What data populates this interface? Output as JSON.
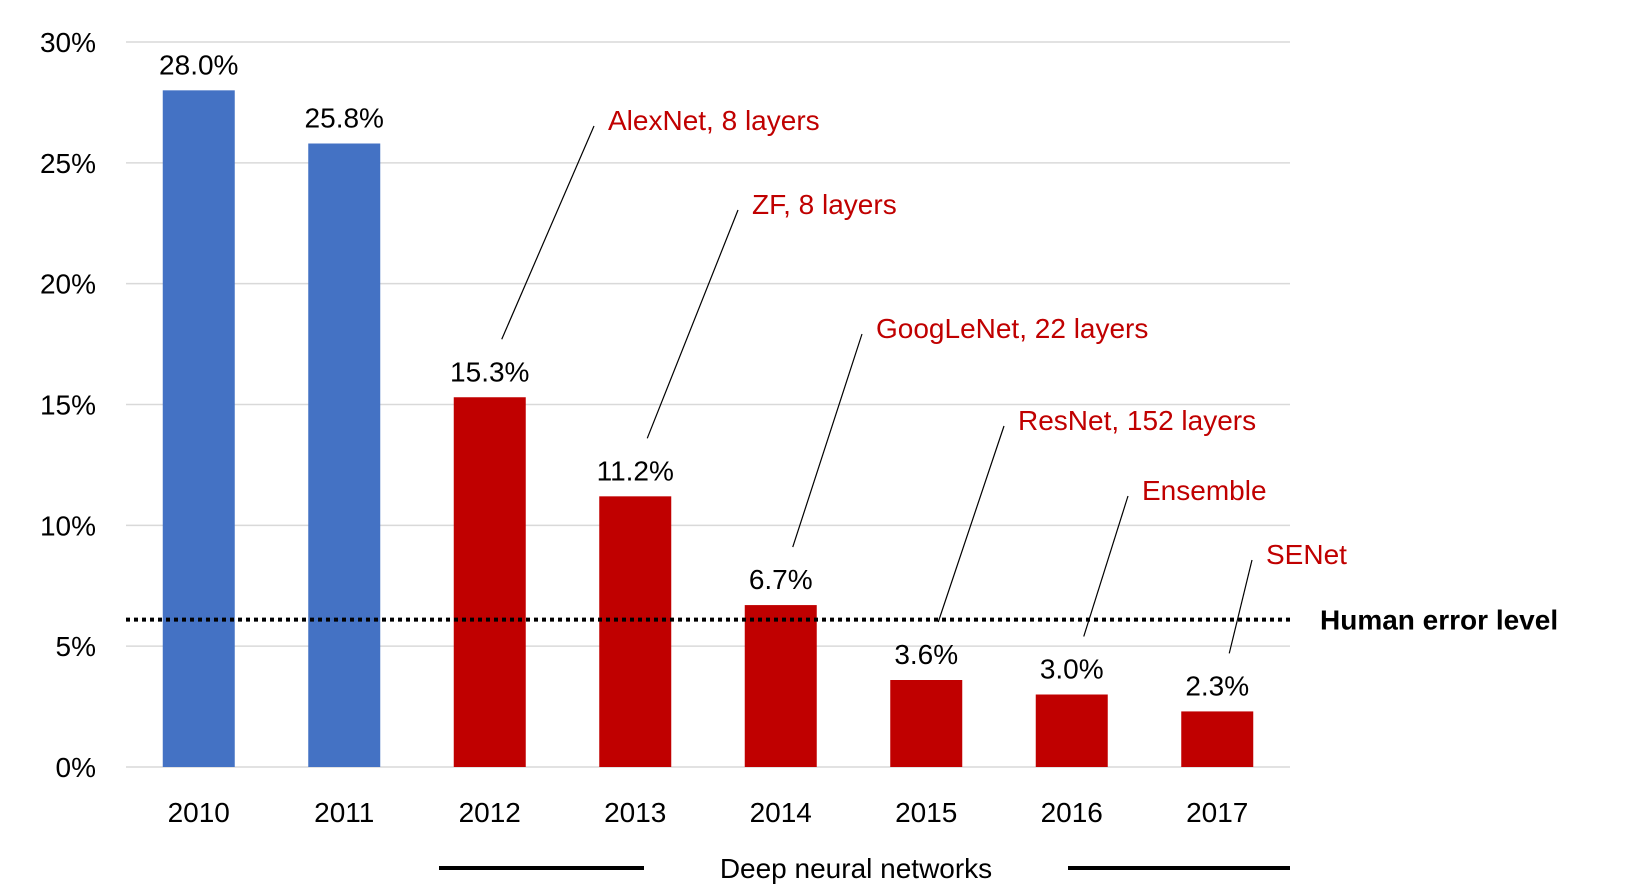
{
  "chart_data": {
    "type": "bar",
    "categories": [
      "2010",
      "2011",
      "2012",
      "2013",
      "2014",
      "2015",
      "2016",
      "2017"
    ],
    "values": [
      28.0,
      25.8,
      15.3,
      11.2,
      6.7,
      3.6,
      3.0,
      2.3
    ],
    "value_labels": [
      "28.0%",
      "25.8%",
      "15.3%",
      "11.2%",
      "6.7%",
      "3.6%",
      "3.0%",
      "2.3%"
    ],
    "bar_colors": [
      "#4472C4",
      "#4472C4",
      "#C00000",
      "#C00000",
      "#C00000",
      "#C00000",
      "#C00000",
      "#C00000"
    ],
    "ylim": [
      0,
      30
    ],
    "y_ticks": [
      0,
      5,
      10,
      15,
      20,
      25,
      30
    ],
    "y_tick_labels": [
      "0%",
      "5%",
      "10%",
      "15%",
      "20%",
      "25%",
      "30%"
    ],
    "grid": true,
    "title": "",
    "xlabel": "",
    "ylabel": "",
    "annotations": [
      {
        "category": "2012",
        "text": "AlexNet, 8 layers"
      },
      {
        "category": "2013",
        "text": "ZF, 8 layers"
      },
      {
        "category": "2014",
        "text": "GoogLeNet, 22 layers"
      },
      {
        "category": "2015",
        "text": "ResNet, 152 layers"
      },
      {
        "category": "2016",
        "text": "Ensemble"
      },
      {
        "category": "2017",
        "text": "SENet"
      }
    ],
    "annotation_color": "#C00000",
    "reference_line": {
      "value": 6.1,
      "label": "Human error level",
      "style": "dotted"
    },
    "group_label": {
      "text": "Deep neural networks",
      "from": "2012",
      "to": "2017"
    }
  }
}
